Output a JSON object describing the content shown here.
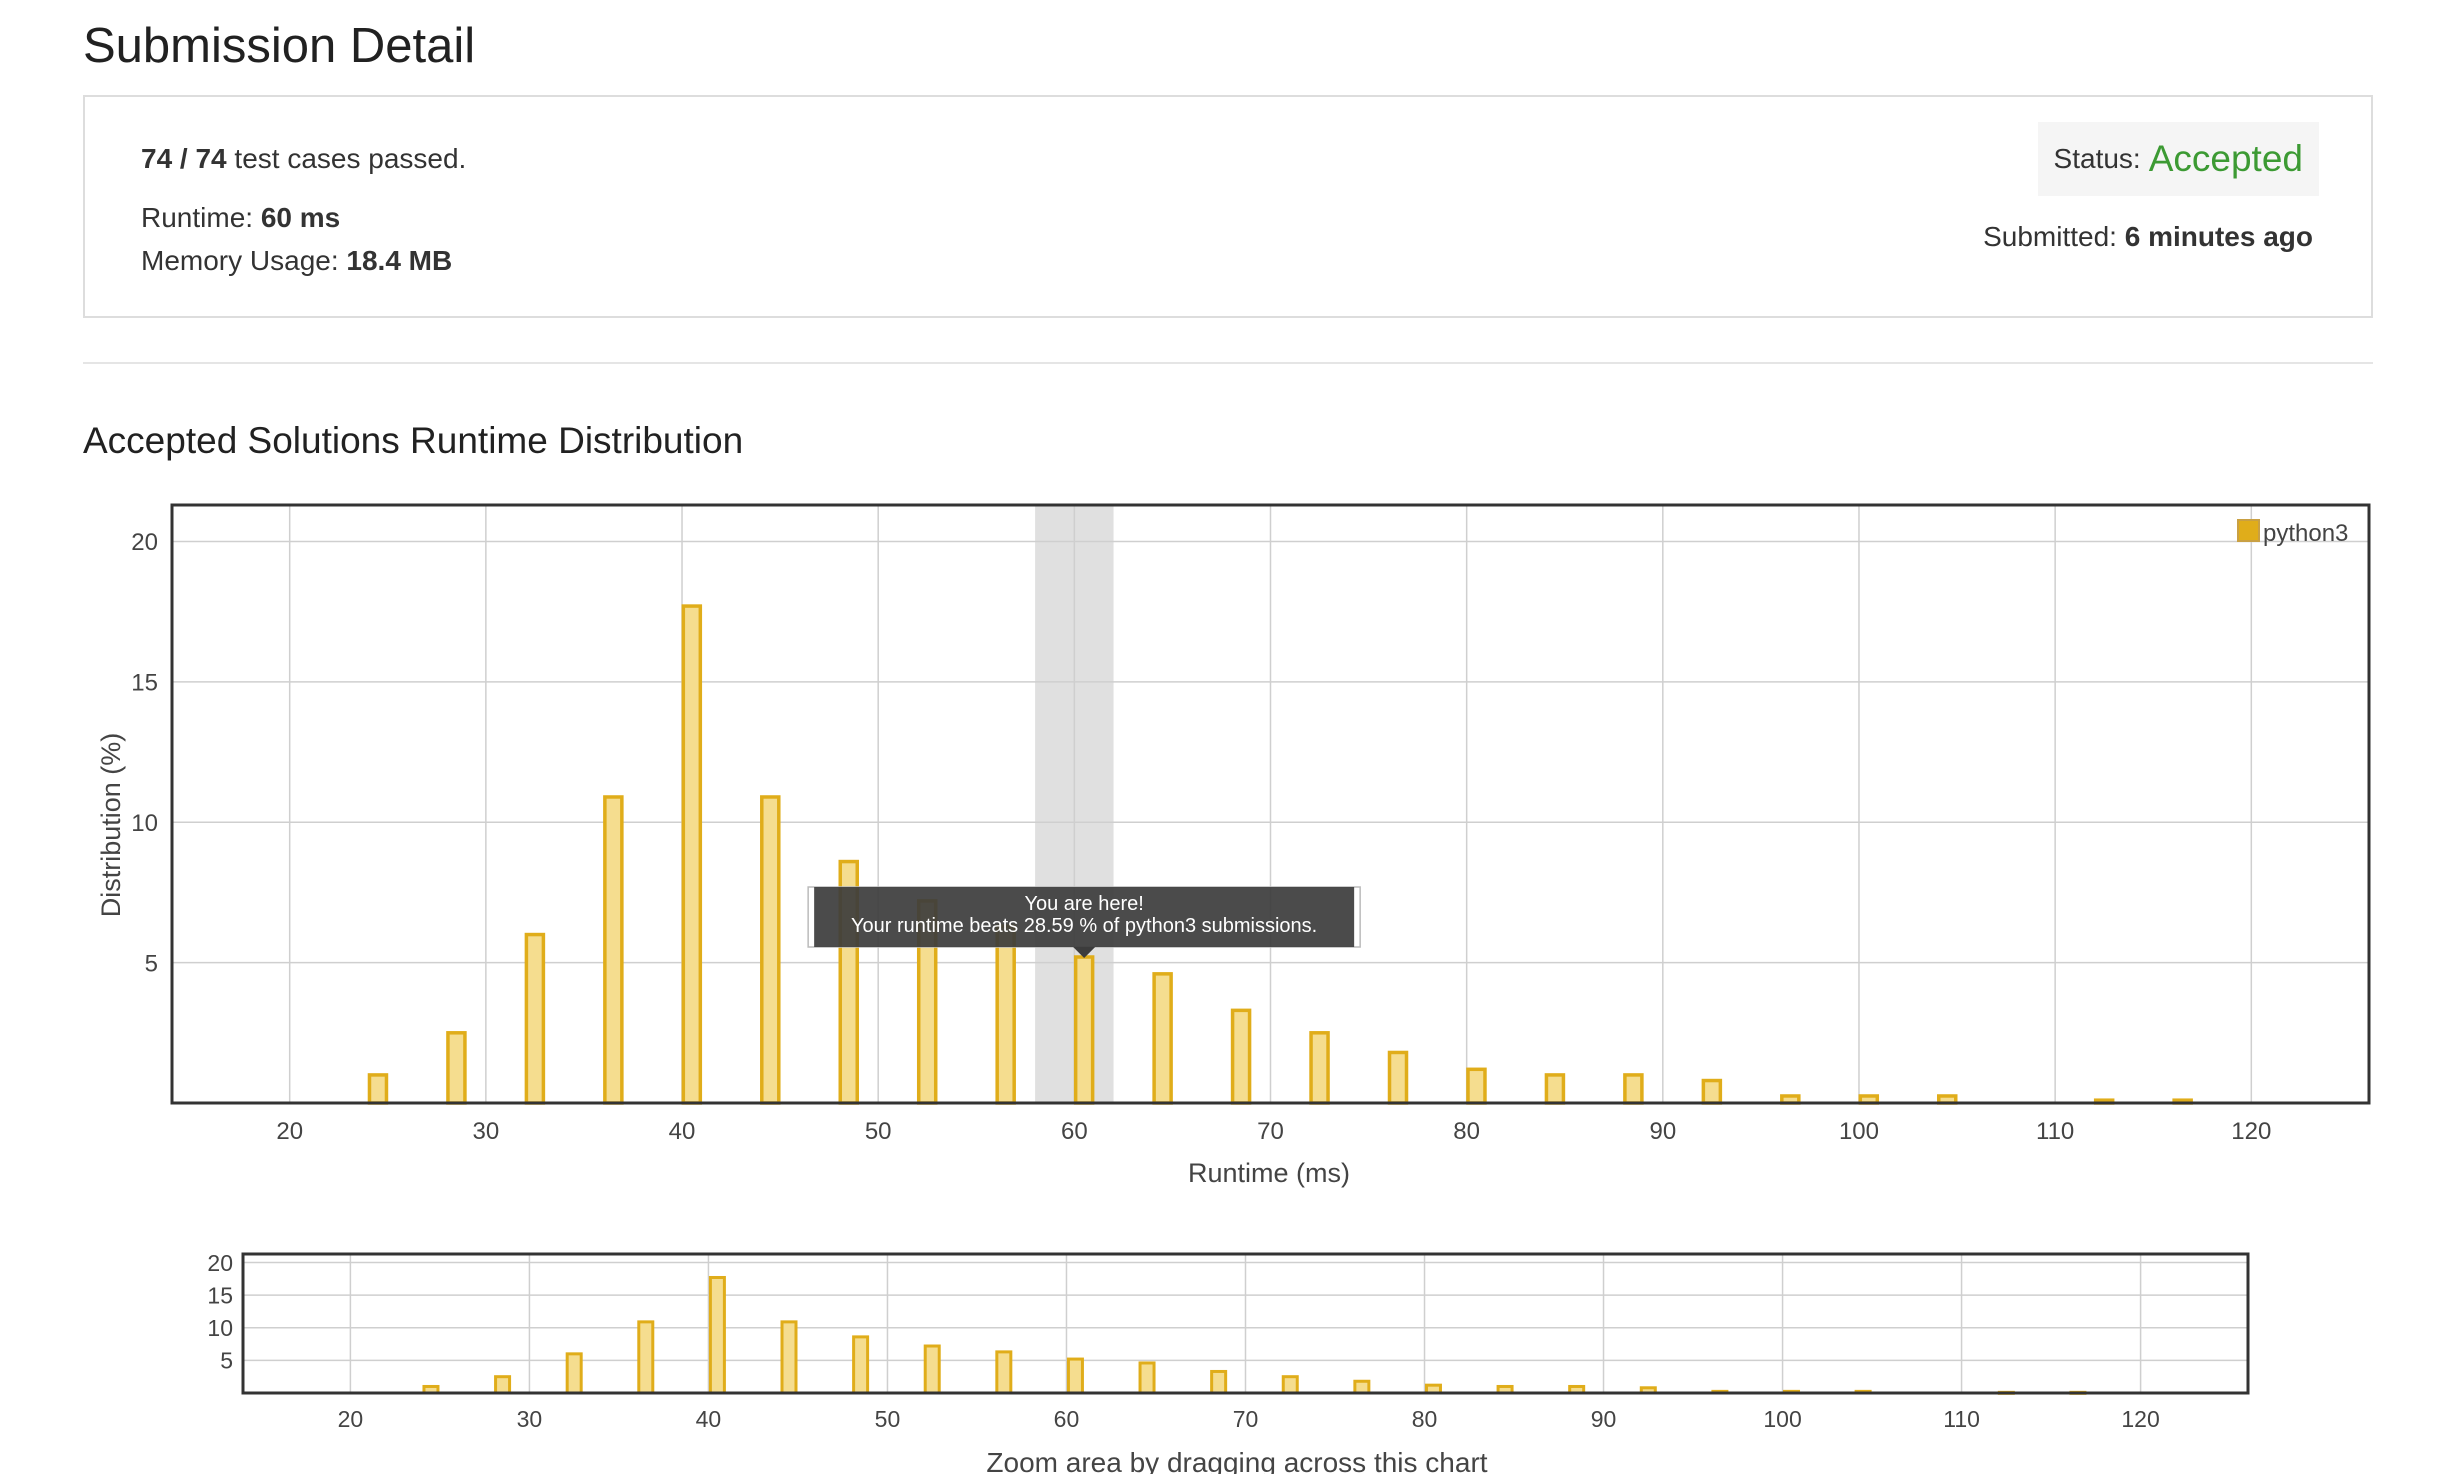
{
  "page": {
    "title": "Submission Detail"
  },
  "summary": {
    "tests_passed": "74 / 74",
    "tests_suffix": "test cases passed.",
    "runtime_label": "Runtime:",
    "runtime_value": "60 ms",
    "memory_label": "Memory Usage:",
    "memory_value": "18.4 MB",
    "status_label": "Status:",
    "status_value": "Accepted",
    "submitted_label": "Submitted:",
    "submitted_value": "6 minutes ago"
  },
  "colors": {
    "accent": "#3c9a33",
    "bar_fill": "#f5dd8f",
    "bar_stroke": "#e0ad1a",
    "highlight": "#e0e0e0"
  },
  "distribution": {
    "section_title": "Accepted Solutions Runtime Distribution",
    "tooltip_line1": "You are here!",
    "tooltip_line2": "Your runtime beats 28.59 % of python3 submissions.",
    "navigator_caption": "Zoom area by dragging across this chart"
  },
  "chart_data": [
    {
      "type": "bar",
      "xlabel": "Runtime (ms)",
      "ylabel": "Distribution (%)",
      "xlim": [
        14,
        126
      ],
      "ylim": [
        0,
        21.3
      ],
      "x_ticks": [
        20,
        30,
        40,
        50,
        60,
        70,
        80,
        90,
        100,
        110,
        120
      ],
      "y_ticks": [
        5,
        10,
        15,
        20
      ],
      "grid": true,
      "legend_position": "top-right",
      "highlight_x": [
        58,
        62
      ],
      "series": [
        {
          "name": "python3",
          "x": [
            24.5,
            28.5,
            32.5,
            36.5,
            40.5,
            44.5,
            48.5,
            52.5,
            56.5,
            60.5,
            64.5,
            68.5,
            72.5,
            76.5,
            80.5,
            84.5,
            88.5,
            92.5,
            96.5,
            100.5,
            104.5,
            112.5,
            116.5
          ],
          "values": [
            1.0,
            2.5,
            6.0,
            10.9,
            17.7,
            10.9,
            8.6,
            7.2,
            6.3,
            5.2,
            4.6,
            3.3,
            2.5,
            1.8,
            1.2,
            1.0,
            1.0,
            0.8,
            0.25,
            0.25,
            0.25,
            0.1,
            0.1
          ]
        }
      ]
    },
    {
      "type": "bar",
      "xlim": [
        14,
        126
      ],
      "ylim": [
        0,
        21.3
      ],
      "x_ticks": [
        20,
        30,
        40,
        50,
        60,
        70,
        80,
        90,
        100,
        110,
        120
      ],
      "y_ticks": [
        5,
        10,
        15,
        20
      ],
      "grid": true,
      "series": [
        {
          "x": [
            24.5,
            28.5,
            32.5,
            36.5,
            40.5,
            44.5,
            48.5,
            52.5,
            56.5,
            60.5,
            64.5,
            68.5,
            72.5,
            76.5,
            80.5,
            84.5,
            88.5,
            92.5,
            96.5,
            100.5,
            104.5,
            112.5,
            116.5
          ],
          "values": [
            1.0,
            2.5,
            6.0,
            10.9,
            17.7,
            10.9,
            8.6,
            7.2,
            6.3,
            5.2,
            4.6,
            3.3,
            2.5,
            1.8,
            1.2,
            1.0,
            1.0,
            0.8,
            0.25,
            0.25,
            0.25,
            0.1,
            0.1
          ]
        }
      ]
    }
  ]
}
